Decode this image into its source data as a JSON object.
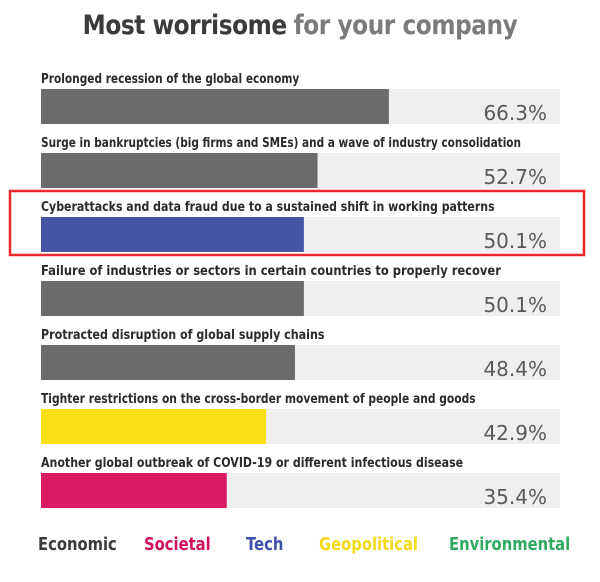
{
  "title_part1": "Most worrisome",
  "title_part2": "for your company",
  "chart_data": {
    "type": "bar",
    "orientation": "horizontal",
    "xlim": [
      0,
      100
    ],
    "categories": [
      "Prolonged recession of the global economy",
      "Surge in bankruptcies (big firms and SMEs) and a wave of industry consolidation",
      "Cyberattacks and data fraud due to a sustained shift in working patterns",
      "Failure of industries or sectors in certain countries to properly recover",
      "Protracted disruption of global supply chains",
      "Tighter restrictions on the cross-border movement of people and goods",
      "Another global outbreak of COVID-19 or different infectious disease"
    ],
    "values": [
      66.3,
      52.7,
      50.1,
      50.1,
      48.4,
      42.9,
      35.4
    ],
    "value_labels": [
      "66.3%",
      "52.7%",
      "50.1%",
      "50.1%",
      "48.4%",
      "42.9%",
      "35.4%"
    ],
    "bar_groups": [
      "Economic",
      "Economic",
      "Tech",
      "Economic",
      "Economic",
      "Geopolitical",
      "Societal"
    ],
    "highlighted_index": 2,
    "track_color": "#efefef",
    "highlight_color": "#e8282b"
  },
  "legend": [
    {
      "name": "Economic",
      "color": "#3a3a3a"
    },
    {
      "name": "Societal",
      "color": "#d0105f"
    },
    {
      "name": "Tech",
      "color": "#3f51a8"
    },
    {
      "name": "Geopolitical",
      "color": "#f4d916"
    },
    {
      "name": "Environmental",
      "color": "#2faa5f"
    }
  ],
  "bar_colors": {
    "Economic": "#6b6b6b",
    "Societal": "#d81b63",
    "Tech": "#4455a6",
    "Geopolitical": "#fade16",
    "Environmental": "#2faa5f"
  }
}
